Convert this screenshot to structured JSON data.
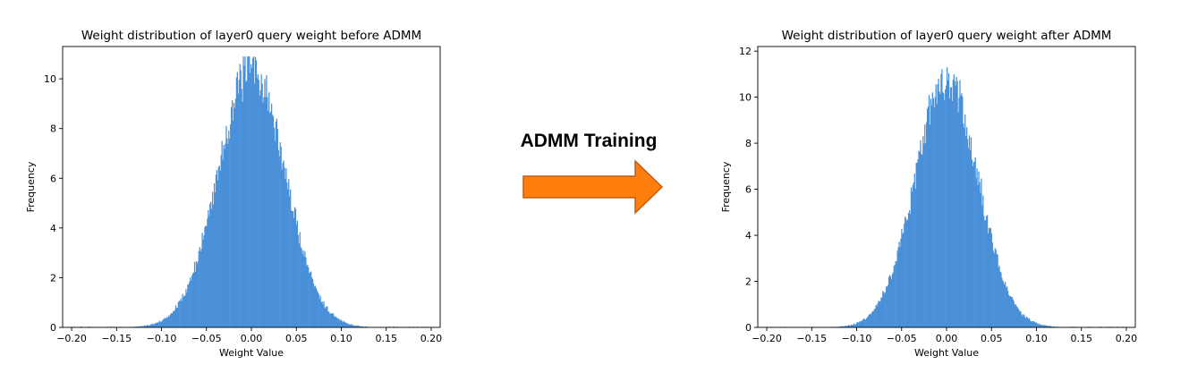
{
  "accent_color": "#4a90d9",
  "arrow": {
    "label": "ADMM Training",
    "fill": "#ff7f0e",
    "stroke": "#c55a11",
    "icon": "right-arrow-icon"
  },
  "chart_data": [
    {
      "type": "bar",
      "title": "Weight distribution of layer0 query weight before ADMM",
      "xlabel": "Weight Value",
      "ylabel": "Frequency",
      "xlim": [
        -0.21,
        0.21
      ],
      "ylim": [
        0,
        11.3
      ],
      "xticks": [
        -0.2,
        -0.15,
        -0.1,
        -0.05,
        0.0,
        0.05,
        0.1,
        0.15,
        0.2
      ],
      "xtick_labels": [
        "−0.20",
        "−0.15",
        "−0.10",
        "−0.05",
        "0.00",
        "0.05",
        "0.10",
        "0.15",
        "0.20"
      ],
      "yticks": [
        0,
        2,
        4,
        6,
        8,
        10
      ],
      "ytick_labels": [
        "0",
        "2",
        "4",
        "6",
        "8",
        "10"
      ],
      "grid": false,
      "color": "#4a90d9",
      "distribution": {
        "kind": "histogram",
        "center": 0.0,
        "peak": 10.4,
        "std": 0.037,
        "max_value": 10.9,
        "range": [
          -0.2,
          0.2
        ]
      }
    },
    {
      "type": "bar",
      "title": "Weight distribution of layer0 query weight after ADMM",
      "xlabel": "Weight Value",
      "ylabel": "Frequency",
      "xlim": [
        -0.21,
        0.21
      ],
      "ylim": [
        0,
        12.2
      ],
      "xticks": [
        -0.2,
        -0.15,
        -0.1,
        -0.05,
        0.0,
        0.05,
        0.1,
        0.15,
        0.2
      ],
      "xtick_labels": [
        "−0.20",
        "−0.15",
        "−0.10",
        "−0.05",
        "0.00",
        "0.05",
        "0.10",
        "0.15",
        "0.20"
      ],
      "yticks": [
        0,
        2,
        4,
        6,
        8,
        10,
        12
      ],
      "ytick_labels": [
        "0",
        "2",
        "4",
        "6",
        "8",
        "10",
        "12"
      ],
      "grid": false,
      "color": "#4a90d9",
      "distribution": {
        "kind": "histogram",
        "center": 0.0,
        "peak": 10.8,
        "std": 0.035,
        "max_value": 11.3,
        "range": [
          -0.2,
          0.2
        ]
      }
    }
  ]
}
